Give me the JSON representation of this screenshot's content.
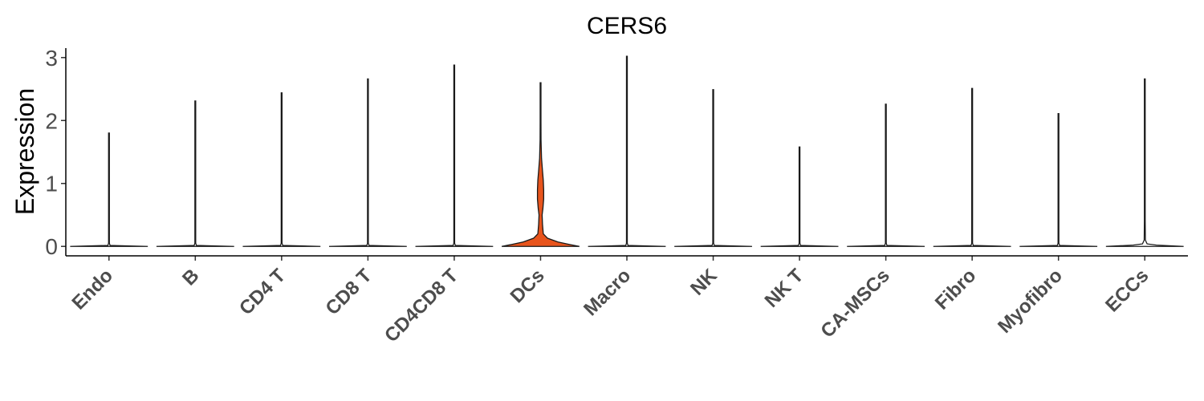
{
  "chart_data": {
    "type": "violin",
    "title": "CERS6",
    "xlabel": "",
    "ylabel": "Expression",
    "ylim": [
      -0.15,
      3.15
    ],
    "yticks": [
      0,
      1,
      2,
      3
    ],
    "grid": false,
    "categories": [
      "Endo",
      "B",
      "CD4 T",
      "CD8 T",
      "CD4CD8 T",
      "DCs",
      "Macro",
      "NK",
      "NK T",
      "CA-MSCs",
      "Fibro",
      "Myofibro",
      "ECCs"
    ],
    "max_values": [
      1.8,
      2.31,
      2.44,
      2.66,
      2.88,
      2.6,
      3.02,
      2.49,
      1.58,
      2.26,
      2.51,
      2.11,
      2.66
    ],
    "fill_colors": [
      "#ffffff",
      "#ffffff",
      "#ffffff",
      "#ffffff",
      "#ffffff",
      "#e8541c",
      "#ffffff",
      "#ffffff",
      "#ffffff",
      "#ffffff",
      "#ffffff",
      "#ffffff",
      "#ffffff"
    ],
    "densities": [
      [
        [
          0,
          1.0
        ],
        [
          0.015,
          0.03
        ],
        [
          0.05,
          0.005
        ],
        [
          1.8,
          0.005
        ]
      ],
      [
        [
          0,
          1.0
        ],
        [
          0.015,
          0.03
        ],
        [
          0.05,
          0.005
        ],
        [
          2.31,
          0.005
        ]
      ],
      [
        [
          0,
          1.0
        ],
        [
          0.015,
          0.03
        ],
        [
          0.05,
          0.005
        ],
        [
          2.44,
          0.005
        ]
      ],
      [
        [
          0,
          1.0
        ],
        [
          0.015,
          0.03
        ],
        [
          0.05,
          0.005
        ],
        [
          2.66,
          0.005
        ]
      ],
      [
        [
          0,
          1.0
        ],
        [
          0.015,
          0.03
        ],
        [
          0.05,
          0.005
        ],
        [
          2.88,
          0.005
        ]
      ],
      [
        [
          0,
          1.0
        ],
        [
          0.03,
          0.75
        ],
        [
          0.07,
          0.45
        ],
        [
          0.13,
          0.18
        ],
        [
          0.2,
          0.07
        ],
        [
          0.35,
          0.05
        ],
        [
          0.5,
          0.04
        ],
        [
          0.6,
          0.06
        ],
        [
          0.75,
          0.08
        ],
        [
          0.9,
          0.08
        ],
        [
          1.05,
          0.07
        ],
        [
          1.2,
          0.05
        ],
        [
          1.4,
          0.025
        ],
        [
          1.7,
          0.012
        ],
        [
          2.0,
          0.006
        ],
        [
          2.6,
          0.005
        ]
      ],
      [
        [
          0,
          1.0
        ],
        [
          0.015,
          0.03
        ],
        [
          0.05,
          0.005
        ],
        [
          3.02,
          0.005
        ]
      ],
      [
        [
          0,
          1.0
        ],
        [
          0.015,
          0.03
        ],
        [
          0.05,
          0.005
        ],
        [
          2.49,
          0.005
        ]
      ],
      [
        [
          0,
          1.0
        ],
        [
          0.015,
          0.03
        ],
        [
          0.05,
          0.005
        ],
        [
          1.58,
          0.005
        ]
      ],
      [
        [
          0,
          1.0
        ],
        [
          0.015,
          0.03
        ],
        [
          0.05,
          0.005
        ],
        [
          2.26,
          0.005
        ]
      ],
      [
        [
          0,
          1.0
        ],
        [
          0.015,
          0.03
        ],
        [
          0.05,
          0.005
        ],
        [
          2.51,
          0.005
        ]
      ],
      [
        [
          0,
          1.0
        ],
        [
          0.015,
          0.03
        ],
        [
          0.05,
          0.005
        ],
        [
          2.11,
          0.005
        ]
      ],
      [
        [
          0,
          1.0
        ],
        [
          0.02,
          0.3
        ],
        [
          0.04,
          0.06
        ],
        [
          0.1,
          0.015
        ],
        [
          0.4,
          0.01
        ],
        [
          0.8,
          0.008
        ],
        [
          1.2,
          0.006
        ],
        [
          2.66,
          0.005
        ]
      ]
    ]
  }
}
